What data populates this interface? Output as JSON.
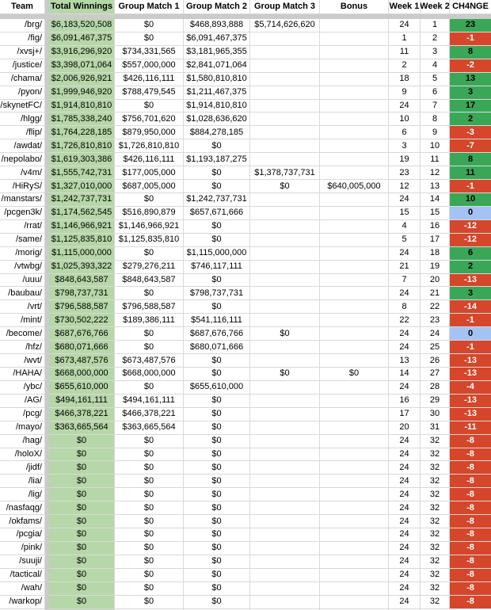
{
  "table": {
    "headers": [
      "Team",
      "Total Winnings",
      "Group Match 1",
      "Group Match 2",
      "Group Match 3",
      "Bonus",
      "Week 1",
      "Week 2",
      "CH4NGE"
    ],
    "rows": [
      {
        "team": "/brg/",
        "total": "$6,183,520,508",
        "gm1": "$0",
        "gm2": "$468,893,888",
        "gm3": "$5,714,626,620",
        "bonus": "",
        "w1": "24",
        "w2": "1",
        "change": "23"
      },
      {
        "team": "/fig/",
        "total": "$6,091,467,375",
        "gm1": "$0",
        "gm2": "$6,091,467,375",
        "gm3": "",
        "bonus": "",
        "w1": "1",
        "w2": "2",
        "change": "-1"
      },
      {
        "team": "/xvsj+/",
        "total": "$3,916,296,920",
        "gm1": "$734,331,565",
        "gm2": "$3,181,965,355",
        "gm3": "",
        "bonus": "",
        "w1": "11",
        "w2": "3",
        "change": "8"
      },
      {
        "team": "/justice/",
        "total": "$3,398,071,064",
        "gm1": "$557,000,000",
        "gm2": "$2,841,071,064",
        "gm3": "",
        "bonus": "",
        "w1": "2",
        "w2": "4",
        "change": "-2"
      },
      {
        "team": "/chama/",
        "total": "$2,006,926,921",
        "gm1": "$426,116,111",
        "gm2": "$1,580,810,810",
        "gm3": "",
        "bonus": "",
        "w1": "18",
        "w2": "5",
        "change": "13"
      },
      {
        "team": "/pyon/",
        "total": "$1,999,946,920",
        "gm1": "$788,479,545",
        "gm2": "$1,211,467,375",
        "gm3": "",
        "bonus": "",
        "w1": "9",
        "w2": "6",
        "change": "3"
      },
      {
        "team": "/skynetFC/",
        "total": "$1,914,810,810",
        "gm1": "$0",
        "gm2": "$1,914,810,810",
        "gm3": "",
        "bonus": "",
        "w1": "24",
        "w2": "7",
        "change": "17"
      },
      {
        "team": "/hlgg/",
        "total": "$1,785,338,240",
        "gm1": "$756,701,620",
        "gm2": "$1,028,636,620",
        "gm3": "",
        "bonus": "",
        "w1": "10",
        "w2": "8",
        "change": "2"
      },
      {
        "team": "/flip/",
        "total": "$1,764,228,185",
        "gm1": "$879,950,000",
        "gm2": "$884,278,185",
        "gm3": "",
        "bonus": "",
        "w1": "6",
        "w2": "9",
        "change": "-3"
      },
      {
        "team": "/awdat/",
        "total": "$1,726,810,810",
        "gm1": "$1,726,810,810",
        "gm2": "$0",
        "gm3": "",
        "bonus": "",
        "w1": "3",
        "w2": "10",
        "change": "-7"
      },
      {
        "team": "/nepolabo/",
        "total": "$1,619,303,386",
        "gm1": "$426,116,111",
        "gm2": "$1,193,187,275",
        "gm3": "",
        "bonus": "",
        "w1": "19",
        "w2": "11",
        "change": "8"
      },
      {
        "team": "/v4m/",
        "total": "$1,555,742,731",
        "gm1": "$177,005,000",
        "gm2": "$0",
        "gm3": "$1,378,737,731",
        "bonus": "",
        "w1": "23",
        "w2": "12",
        "change": "11"
      },
      {
        "team": "/HiRyS/",
        "total": "$1,327,010,000",
        "gm1": "$687,005,000",
        "gm2": "$0",
        "gm3": "$0",
        "bonus": "$640,005,000",
        "w1": "12",
        "w2": "13",
        "change": "-1"
      },
      {
        "team": "/manstars/",
        "total": "$1,242,737,731",
        "gm1": "$0",
        "gm2": "$1,242,737,731",
        "gm3": "",
        "bonus": "",
        "w1": "24",
        "w2": "14",
        "change": "10"
      },
      {
        "team": "/pcgen3k/",
        "total": "$1,174,562,545",
        "gm1": "$516,890,879",
        "gm2": "$657,671,666",
        "gm3": "",
        "bonus": "",
        "w1": "15",
        "w2": "15",
        "change": "0"
      },
      {
        "team": "/rrat/",
        "total": "$1,146,966,921",
        "gm1": "$1,146,966,921",
        "gm2": "$0",
        "gm3": "",
        "bonus": "",
        "w1": "4",
        "w2": "16",
        "change": "-12"
      },
      {
        "team": "/same/",
        "total": "$1,125,835,810",
        "gm1": "$1,125,835,810",
        "gm2": "$0",
        "gm3": "",
        "bonus": "",
        "w1": "5",
        "w2": "17",
        "change": "-12"
      },
      {
        "team": "/morig/",
        "total": "$1,115,000,000",
        "gm1": "$0",
        "gm2": "$1,115,000,000",
        "gm3": "",
        "bonus": "",
        "w1": "24",
        "w2": "18",
        "change": "6"
      },
      {
        "team": "/vtwbg/",
        "total": "$1,025,393,322",
        "gm1": "$279,276,211",
        "gm2": "$746,117,111",
        "gm3": "",
        "bonus": "",
        "w1": "21",
        "w2": "19",
        "change": "2"
      },
      {
        "team": "/uuu/",
        "total": "$848,643,587",
        "gm1": "$848,643,587",
        "gm2": "$0",
        "gm3": "",
        "bonus": "",
        "w1": "7",
        "w2": "20",
        "change": "-13"
      },
      {
        "team": "/baubau/",
        "total": "$798,737,731",
        "gm1": "$0",
        "gm2": "$798,737,731",
        "gm3": "",
        "bonus": "",
        "w1": "24",
        "w2": "21",
        "change": "3"
      },
      {
        "team": "/vrt/",
        "total": "$796,588,587",
        "gm1": "$796,588,587",
        "gm2": "$0",
        "gm3": "",
        "bonus": "",
        "w1": "8",
        "w2": "22",
        "change": "-14"
      },
      {
        "team": "/mint/",
        "total": "$730,502,222",
        "gm1": "$189,386,111",
        "gm2": "$541,116,111",
        "gm3": "",
        "bonus": "",
        "w1": "22",
        "w2": "23",
        "change": "-1"
      },
      {
        "team": "/become/",
        "total": "$687,676,766",
        "gm1": "$0",
        "gm2": "$687,676,766",
        "gm3": "$0",
        "bonus": "",
        "w1": "24",
        "w2": "24",
        "change": "0"
      },
      {
        "team": "/hfz/",
        "total": "$680,071,666",
        "gm1": "$0",
        "gm2": "$680,071,666",
        "gm3": "",
        "bonus": "",
        "w1": "24",
        "w2": "25",
        "change": "-1"
      },
      {
        "team": "/wvt/",
        "total": "$673,487,576",
        "gm1": "$673,487,576",
        "gm2": "$0",
        "gm3": "",
        "bonus": "",
        "w1": "13",
        "w2": "26",
        "change": "-13"
      },
      {
        "team": "/HAHA/",
        "total": "$668,000,000",
        "gm1": "$668,000,000",
        "gm2": "$0",
        "gm3": "$0",
        "bonus": "$0",
        "w1": "14",
        "w2": "27",
        "change": "-13"
      },
      {
        "team": "/ybc/",
        "total": "$655,610,000",
        "gm1": "$0",
        "gm2": "$655,610,000",
        "gm3": "",
        "bonus": "",
        "w1": "24",
        "w2": "28",
        "change": "-4"
      },
      {
        "team": "/AG/",
        "total": "$494,161,111",
        "gm1": "$494,161,111",
        "gm2": "$0",
        "gm3": "",
        "bonus": "",
        "w1": "16",
        "w2": "29",
        "change": "-13"
      },
      {
        "team": "/pcg/",
        "total": "$466,378,221",
        "gm1": "$466,378,221",
        "gm2": "$0",
        "gm3": "",
        "bonus": "",
        "w1": "17",
        "w2": "30",
        "change": "-13"
      },
      {
        "team": "/mayo/",
        "total": "$363,665,564",
        "gm1": "$363,665,564",
        "gm2": "$0",
        "gm3": "",
        "bonus": "",
        "w1": "20",
        "w2": "31",
        "change": "-11"
      },
      {
        "team": "/hag/",
        "total": "$0",
        "gm1": "$0",
        "gm2": "$0",
        "gm3": "",
        "bonus": "",
        "w1": "24",
        "w2": "32",
        "change": "-8"
      },
      {
        "team": "/holoX/",
        "total": "$0",
        "gm1": "$0",
        "gm2": "$0",
        "gm3": "",
        "bonus": "",
        "w1": "24",
        "w2": "32",
        "change": "-8"
      },
      {
        "team": "/jidf/",
        "total": "$0",
        "gm1": "$0",
        "gm2": "$0",
        "gm3": "",
        "bonus": "",
        "w1": "24",
        "w2": "32",
        "change": "-8"
      },
      {
        "team": "/lia/",
        "total": "$0",
        "gm1": "$0",
        "gm2": "$0",
        "gm3": "",
        "bonus": "",
        "w1": "24",
        "w2": "32",
        "change": "-8"
      },
      {
        "team": "/lig/",
        "total": "$0",
        "gm1": "$0",
        "gm2": "$0",
        "gm3": "",
        "bonus": "",
        "w1": "24",
        "w2": "32",
        "change": "-8"
      },
      {
        "team": "/nasfaqg/",
        "total": "$0",
        "gm1": "$0",
        "gm2": "$0",
        "gm3": "",
        "bonus": "",
        "w1": "24",
        "w2": "32",
        "change": "-8"
      },
      {
        "team": "/okfams/",
        "total": "$0",
        "gm1": "$0",
        "gm2": "$0",
        "gm3": "",
        "bonus": "",
        "w1": "24",
        "w2": "32",
        "change": "-8"
      },
      {
        "team": "/pcgia/",
        "total": "$0",
        "gm1": "$0",
        "gm2": "$0",
        "gm3": "",
        "bonus": "",
        "w1": "24",
        "w2": "32",
        "change": "-8"
      },
      {
        "team": "/pink/",
        "total": "$0",
        "gm1": "$0",
        "gm2": "$0",
        "gm3": "",
        "bonus": "",
        "w1": "24",
        "w2": "32",
        "change": "-8"
      },
      {
        "team": "/suuji/",
        "total": "$0",
        "gm1": "$0",
        "gm2": "$0",
        "gm3": "",
        "bonus": "",
        "w1": "24",
        "w2": "32",
        "change": "-8"
      },
      {
        "team": "/tactical/",
        "total": "$0",
        "gm1": "$0",
        "gm2": "$0",
        "gm3": "",
        "bonus": "",
        "w1": "24",
        "w2": "32",
        "change": "-8"
      },
      {
        "team": "/wah/",
        "total": "$0",
        "gm1": "$0",
        "gm2": "$0",
        "gm3": "",
        "bonus": "",
        "w1": "24",
        "w2": "32",
        "change": "-8"
      },
      {
        "team": "/warkop/",
        "total": "$0",
        "gm1": "$0",
        "gm2": "$0",
        "gm3": "",
        "bonus": "",
        "w1": "24",
        "w2": "32",
        "change": "-8"
      }
    ]
  },
  "colors": {
    "winnings_column_bg": "#b6d7a8",
    "change_positive_bg": "#3aa757",
    "change_negative_bg": "#d5462a",
    "change_zero_bg": "#a4c2f4",
    "change_negative_text": "#ffffff",
    "gridline": "#d9d9d9",
    "frozen_divider": "#cbcbcb"
  }
}
